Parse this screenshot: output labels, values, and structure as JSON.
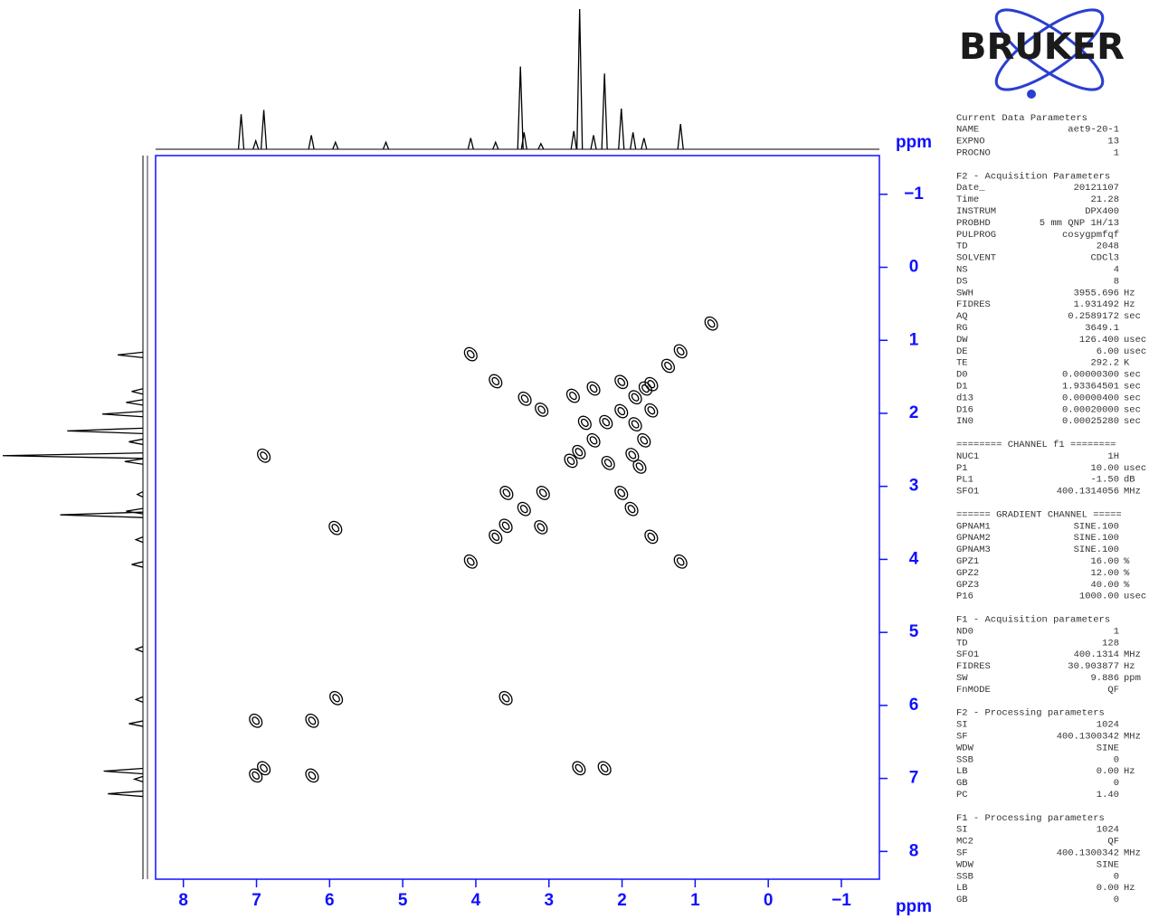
{
  "chart_data": {
    "type": "cosy",
    "x_label": "ppm",
    "y_label": "ppm",
    "xlim": [
      8.38,
      -1.52
    ],
    "ylim": [
      -1.53,
      8.38
    ],
    "xticks": [
      8,
      7,
      6,
      5,
      4,
      3,
      2,
      1,
      0,
      {
        "value": -1,
        "label": "−1"
      }
    ],
    "yticks": [
      {
        "value": -1,
        "label": "−1"
      },
      0,
      1,
      2,
      3,
      4,
      5,
      6,
      7,
      8
    ],
    "color": "#000000",
    "frame_color": "#1010ff",
    "peaks": {
      "x": [
        4.07,
        1.2,
        3.73,
        3.33,
        3.1,
        2.67,
        2.39,
        2.01,
        1.82,
        1.68,
        1.6,
        1.37,
        2.01,
        2.22,
        2.51,
        1.6,
        1.82,
        1.7,
        2.39,
        2.59,
        2.7,
        2.19,
        1.86,
        1.76,
        3.58,
        3.08,
        2.01,
        1.87,
        3.34,
        3.11,
        3.59,
        3.73,
        1.6,
        4.07,
        1.2,
        6.9,
        5.92,
        5.91,
        3.59,
        7.01,
        6.24,
        6.9,
        7.01,
        6.24,
        2.59,
        2.24,
        0.78
      ],
      "y": [
        1.19,
        1.15,
        1.56,
        1.8,
        1.95,
        1.76,
        1.66,
        1.57,
        1.78,
        1.66,
        1.6,
        1.35,
        1.97,
        2.12,
        2.13,
        1.96,
        2.15,
        2.37,
        2.37,
        2.53,
        2.65,
        2.68,
        2.57,
        2.73,
        3.09,
        3.09,
        3.09,
        3.31,
        3.31,
        3.56,
        3.54,
        3.69,
        3.69,
        4.03,
        4.03,
        2.58,
        3.57,
        5.9,
        5.9,
        6.21,
        6.21,
        6.86,
        6.96,
        6.96,
        6.86,
        6.86,
        0.77
      ]
    },
    "projection": {
      "x": [
        7.21,
        7.01,
        6.9,
        6.25,
        5.92,
        5.23,
        4.07,
        3.73,
        3.39,
        3.34,
        3.11,
        2.66,
        2.58,
        2.39,
        2.24,
        2.01,
        1.85,
        1.7,
        1.2
      ],
      "intensity": [
        25,
        6,
        28,
        10,
        5,
        5,
        8,
        5,
        59,
        12,
        4,
        13,
        100,
        10,
        54,
        29,
        12,
        8,
        18
      ]
    }
  },
  "logo": "BRUKER",
  "parameters": [
    {
      "title": "Current Data Parameters",
      "rows": [
        [
          "NAME",
          "aet9-20-1"
        ],
        [
          "EXPNO",
          "13"
        ],
        [
          "PROCNO",
          "1"
        ]
      ]
    },
    {
      "title": "F2 - Acquisition Parameters",
      "rows": [
        [
          "Date_",
          "20121107"
        ],
        [
          "Time",
          "21.28"
        ],
        [
          "INSTRUM",
          "DPX400"
        ],
        [
          "PROBHD",
          "5 mm QNP 1H/13"
        ],
        [
          "PULPROG",
          "cosygpmfqf"
        ],
        [
          "TD",
          "2048"
        ],
        [
          "SOLVENT",
          "CDCl3"
        ],
        [
          "NS",
          "4"
        ],
        [
          "DS",
          "8"
        ],
        [
          "SWH",
          "3955.696",
          "Hz"
        ],
        [
          "FIDRES",
          "1.931492",
          "Hz"
        ],
        [
          "AQ",
          "0.2589172",
          "sec"
        ],
        [
          "RG",
          "3649.1"
        ],
        [
          "DW",
          "126.400",
          "usec"
        ],
        [
          "DE",
          "6.00",
          "usec"
        ],
        [
          "TE",
          "292.2",
          "K"
        ],
        [
          "D0",
          "0.00000300",
          "sec"
        ],
        [
          "D1",
          "1.93364501",
          "sec"
        ],
        [
          "d13",
          "0.00000400",
          "sec"
        ],
        [
          "D16",
          "0.00020000",
          "sec"
        ],
        [
          "IN0",
          "0.00025280",
          "sec"
        ]
      ]
    },
    {
      "title": "======== CHANNEL f1 ========",
      "rows": [
        [
          "NUC1",
          "1H"
        ],
        [
          "P1",
          "10.00",
          "usec"
        ],
        [
          "PL1",
          "-1.50",
          "dB"
        ],
        [
          "SFO1",
          "400.1314056",
          "MHz"
        ]
      ]
    },
    {
      "title": "====== GRADIENT CHANNEL =====",
      "rows": [
        [
          "GPNAM1",
          "SINE.100"
        ],
        [
          "GPNAM2",
          "SINE.100"
        ],
        [
          "GPNAM3",
          "SINE.100"
        ],
        [
          "GPZ1",
          "16.00",
          "%"
        ],
        [
          "GPZ2",
          "12.00",
          "%"
        ],
        [
          "GPZ3",
          "40.00",
          "%"
        ],
        [
          "P16",
          "1000.00",
          "usec"
        ]
      ]
    },
    {
      "title": "F1 - Acquisition parameters",
      "rows": [
        [
          "ND0",
          "1"
        ],
        [
          "TD",
          "128"
        ],
        [
          "SFO1",
          "400.1314",
          "MHz"
        ],
        [
          "FIDRES",
          "30.903877",
          "Hz"
        ],
        [
          "SW",
          "9.886",
          "ppm"
        ],
        [
          "FnMODE",
          "QF"
        ]
      ]
    },
    {
      "title": "F2 - Processing parameters",
      "rows": [
        [
          "SI",
          "1024"
        ],
        [
          "SF",
          "400.1300342",
          "MHz"
        ],
        [
          "WDW",
          "SINE"
        ],
        [
          "SSB",
          "0"
        ],
        [
          "LB",
          "0.00",
          "Hz"
        ],
        [
          "GB",
          "0"
        ],
        [
          "PC",
          "1.40"
        ]
      ]
    },
    {
      "title": "F1 - Processing parameters",
      "rows": [
        [
          "SI",
          "1024"
        ],
        [
          "MC2",
          "QF"
        ],
        [
          "SF",
          "400.1300342",
          "MHz"
        ],
        [
          "WDW",
          "SINE"
        ],
        [
          "SSB",
          "0"
        ],
        [
          "LB",
          "0.00",
          "Hz"
        ],
        [
          "GB",
          "0"
        ]
      ]
    }
  ]
}
